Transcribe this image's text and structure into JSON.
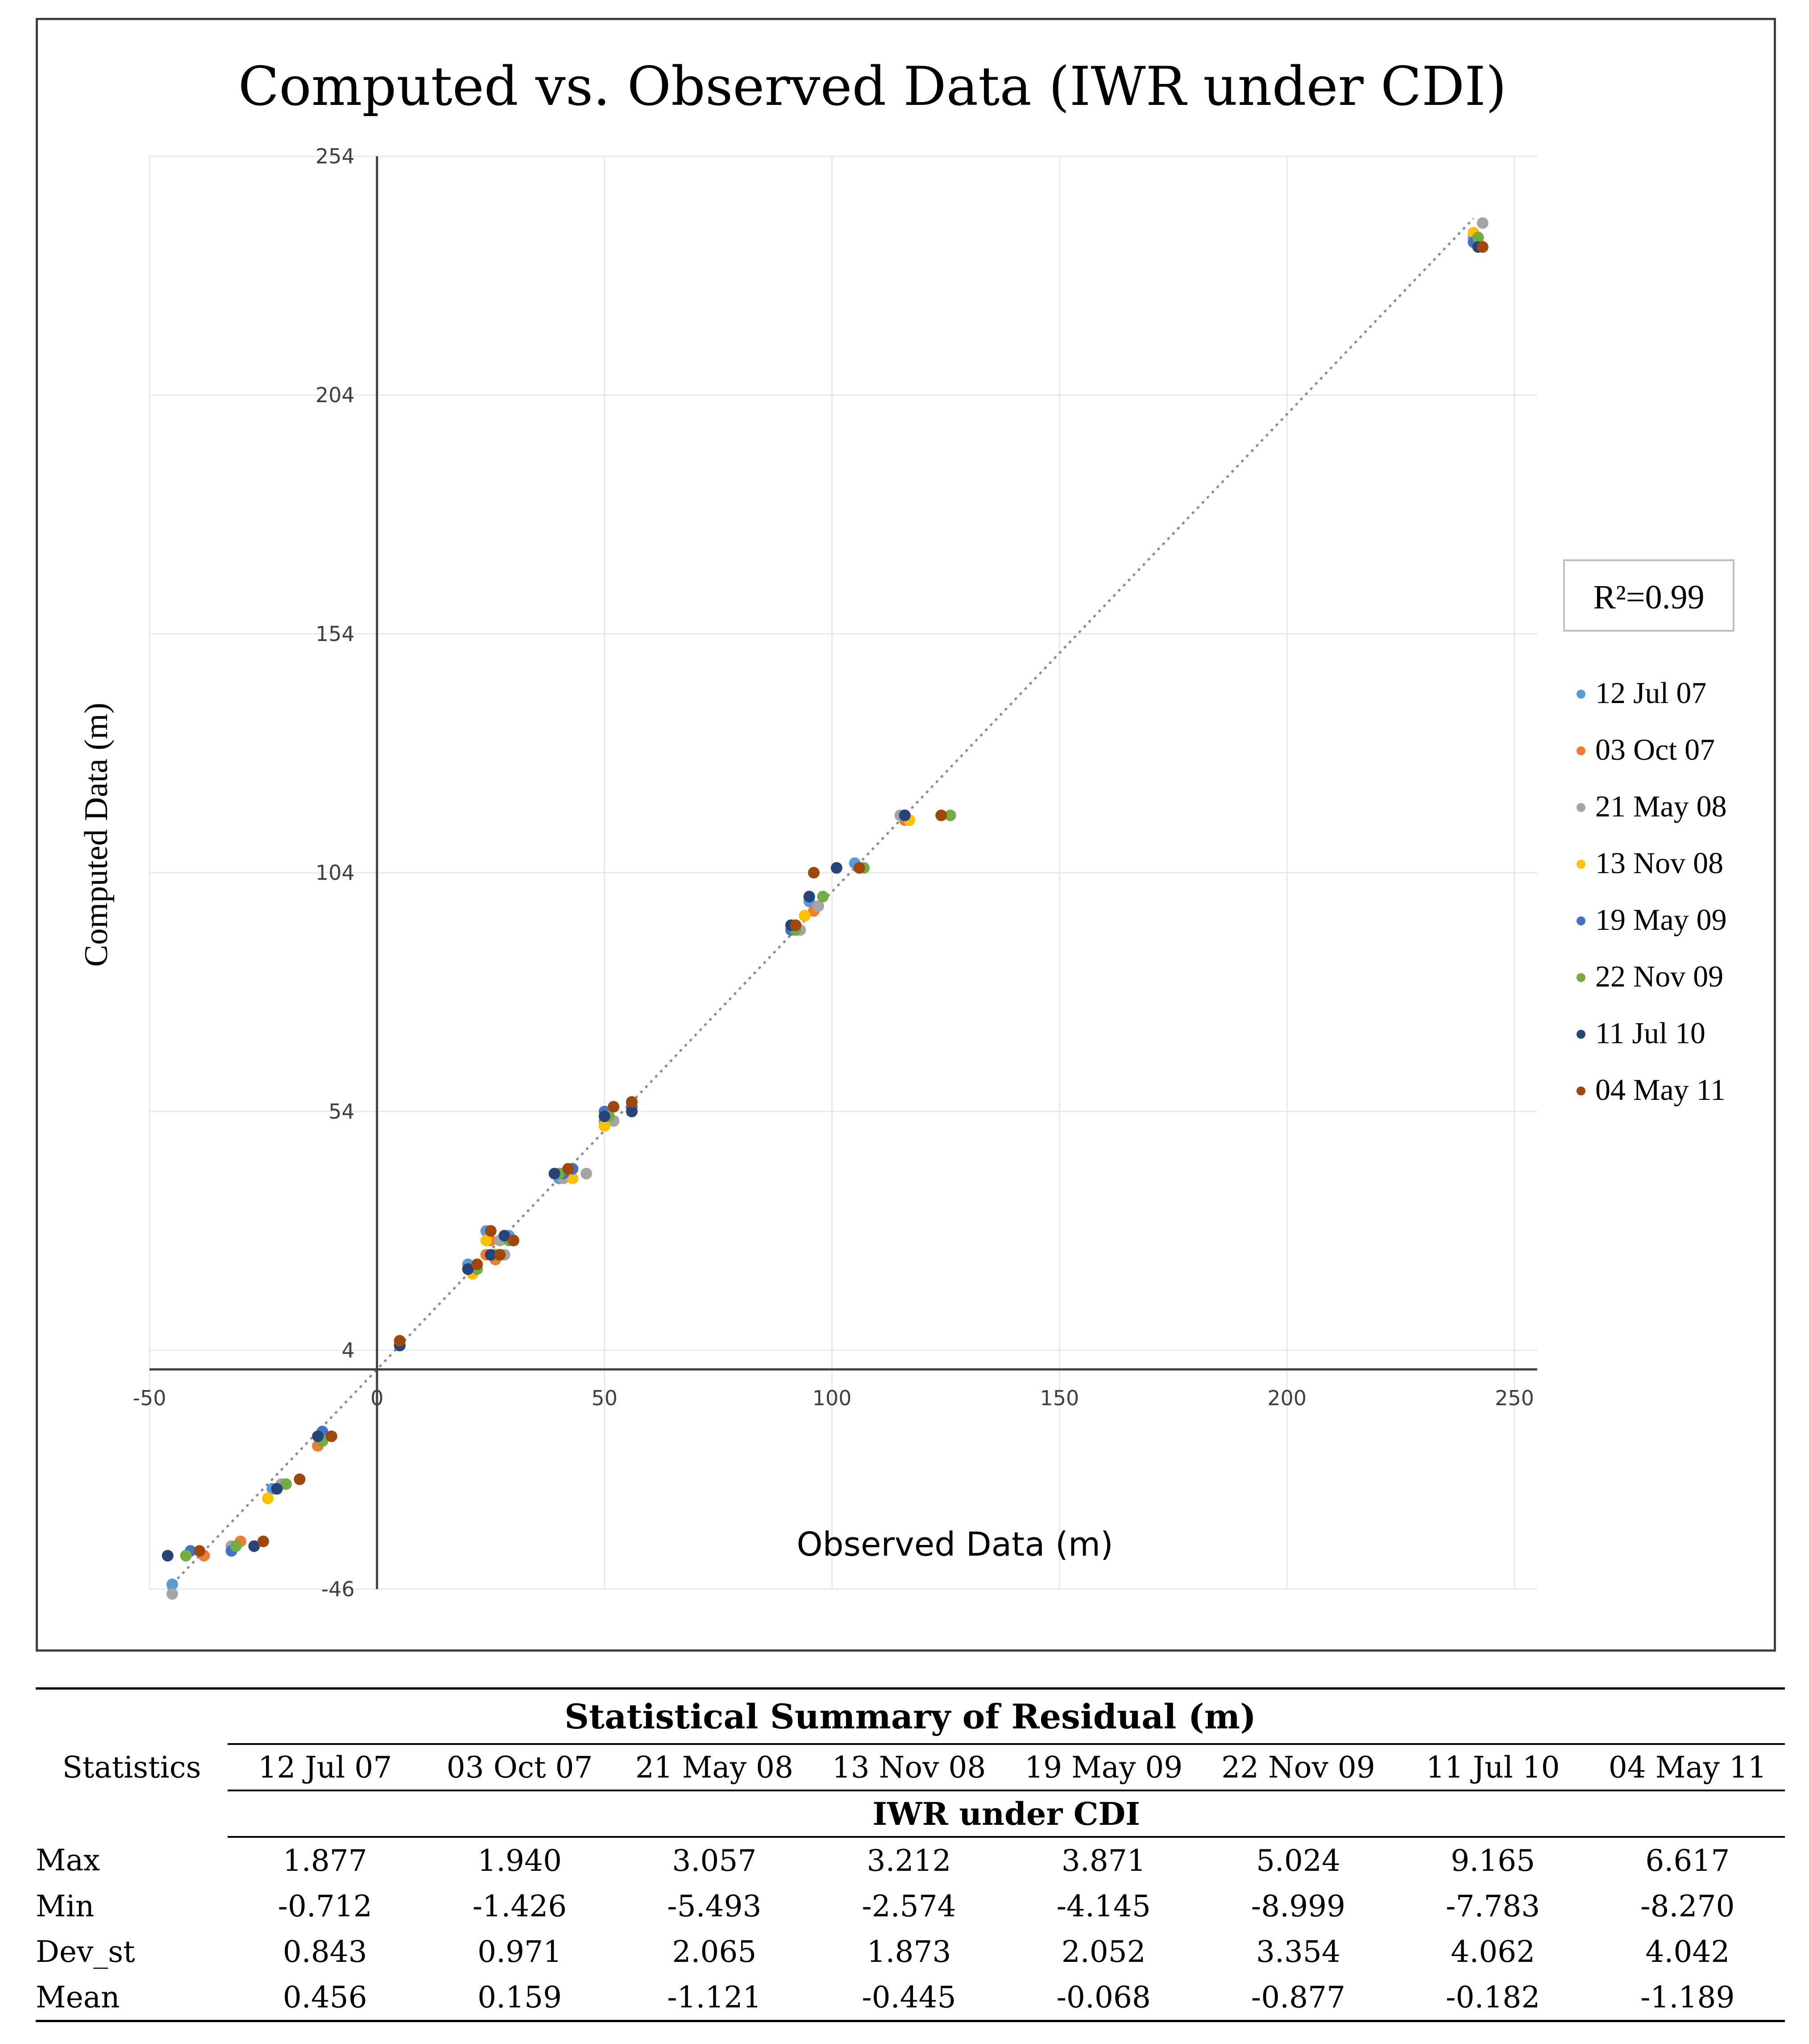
{
  "chart_data": {
    "type": "scatter",
    "title": "Computed vs. Observed Data (IWR under CDI)",
    "xlabel": "Observed Data (m)",
    "ylabel": "Computed Data (m)",
    "xlim": [
      -50,
      255
    ],
    "ylim": [
      -46,
      254
    ],
    "xticks": [
      -50,
      0,
      50,
      100,
      150,
      200,
      250
    ],
    "yticks": [
      -46,
      4,
      54,
      104,
      154,
      204,
      254
    ],
    "grid": true,
    "r2_label": "R²=0.99",
    "legend_position": "right",
    "trendline": {
      "style": "dotted",
      "from": [
        -46,
        -46
      ],
      "to": [
        241,
        241
      ]
    },
    "series": [
      {
        "name": "12 Jul 07",
        "color": "#5B9BD5",
        "points": [
          [
            -45,
            -45
          ],
          [
            -32,
            -37
          ],
          [
            -12,
            -15
          ],
          [
            -23,
            -25
          ],
          [
            5,
            5
          ],
          [
            20,
            22
          ],
          [
            24,
            29
          ],
          [
            29,
            28
          ],
          [
            40,
            40
          ],
          [
            42,
            41
          ],
          [
            50,
            52
          ],
          [
            56,
            55
          ],
          [
            92,
            93
          ],
          [
            95,
            98
          ],
          [
            105,
            106
          ],
          [
            116,
            116
          ],
          [
            241,
            237
          ]
        ]
      },
      {
        "name": "03 Oct 07",
        "color": "#ED7D31",
        "points": [
          [
            -38,
            -39
          ],
          [
            -30,
            -36
          ],
          [
            -13,
            -16
          ],
          [
            -22,
            -25
          ],
          [
            5,
            5
          ],
          [
            24,
            24
          ],
          [
            25,
            27
          ],
          [
            26,
            23
          ],
          [
            42,
            42
          ],
          [
            50,
            51
          ],
          [
            56,
            56
          ],
          [
            93,
            92
          ],
          [
            96,
            96
          ],
          [
            106,
            105
          ],
          [
            116,
            115
          ],
          [
            124,
            116
          ],
          [
            242,
            236
          ]
        ]
      },
      {
        "name": "21 May 08",
        "color": "#A5A5A5",
        "points": [
          [
            -45,
            -47
          ],
          [
            -32,
            -37
          ],
          [
            -12,
            -14
          ],
          [
            -21,
            -24
          ],
          [
            5,
            5
          ],
          [
            21,
            21
          ],
          [
            27,
            27
          ],
          [
            28,
            24
          ],
          [
            41,
            40
          ],
          [
            46,
            41
          ],
          [
            52,
            52
          ],
          [
            56,
            55
          ],
          [
            93,
            92
          ],
          [
            97,
            97
          ],
          [
            107,
            105
          ],
          [
            115,
            116
          ],
          [
            243,
            240
          ]
        ]
      },
      {
        "name": "13 Nov 08",
        "color": "#FFC000",
        "points": [
          [
            -24,
            -27
          ],
          [
            -12,
            -15
          ],
          [
            5,
            5
          ],
          [
            21,
            20
          ],
          [
            24,
            27
          ],
          [
            27,
            24
          ],
          [
            43,
            40
          ],
          [
            50,
            51
          ],
          [
            51,
            53
          ],
          [
            91,
            92
          ],
          [
            94,
            95
          ],
          [
            117,
            115
          ],
          [
            241,
            238
          ]
        ]
      },
      {
        "name": "19 May 09",
        "color": "#4472C4",
        "points": [
          [
            -41,
            -38
          ],
          [
            -32,
            -38
          ],
          [
            -12,
            -13
          ],
          [
            -22,
            -25
          ],
          [
            5,
            5
          ],
          [
            20,
            21
          ],
          [
            26,
            24
          ],
          [
            30,
            27
          ],
          [
            41,
            41
          ],
          [
            43,
            42
          ],
          [
            50,
            54
          ],
          [
            56,
            55
          ],
          [
            91,
            92
          ],
          [
            95,
            99
          ],
          [
            106,
            105
          ],
          [
            116,
            116
          ],
          [
            241,
            236
          ]
        ]
      },
      {
        "name": "22 Nov 09",
        "color": "#70AD47",
        "points": [
          [
            -42,
            -39
          ],
          [
            -31,
            -37
          ],
          [
            -20,
            -24
          ],
          [
            -12,
            -15
          ],
          [
            5,
            5
          ],
          [
            22,
            21
          ],
          [
            26,
            24
          ],
          [
            29,
            27
          ],
          [
            40,
            41
          ],
          [
            51,
            53
          ],
          [
            56,
            54
          ],
          [
            92,
            92
          ],
          [
            98,
            99
          ],
          [
            107,
            105
          ],
          [
            126,
            116
          ],
          [
            242,
            237
          ]
        ]
      },
      {
        "name": "11 Jul 10",
        "color": "#264478",
        "points": [
          [
            -46,
            -39
          ],
          [
            -27,
            -37
          ],
          [
            -13,
            -14
          ],
          [
            -22,
            -25
          ],
          [
            5,
            5
          ],
          [
            20,
            21
          ],
          [
            25,
            24
          ],
          [
            28,
            28
          ],
          [
            39,
            41
          ],
          [
            50,
            53
          ],
          [
            56,
            54
          ],
          [
            91,
            93
          ],
          [
            95,
            99
          ],
          [
            101,
            105
          ],
          [
            116,
            116
          ],
          [
            242,
            235
          ]
        ]
      },
      {
        "name": "04 May 11",
        "color": "#9E480E",
        "points": [
          [
            -39,
            -38
          ],
          [
            -25,
            -36
          ],
          [
            -10,
            -14
          ],
          [
            -17,
            -23
          ],
          [
            5,
            6
          ],
          [
            22,
            22
          ],
          [
            25,
            29
          ],
          [
            27,
            24
          ],
          [
            30,
            27
          ],
          [
            42,
            42
          ],
          [
            52,
            55
          ],
          [
            56,
            56
          ],
          [
            92,
            93
          ],
          [
            96,
            104
          ],
          [
            106,
            105
          ],
          [
            124,
            116
          ],
          [
            243,
            235
          ]
        ]
      }
    ]
  },
  "table": {
    "title": "Statistical Summary of Residual (m)",
    "stat_header": "Statistics",
    "columns": [
      "12 Jul 07",
      "03 Oct 07",
      "21 May 08",
      "13 Nov 08",
      "19 May 09",
      "22 Nov 09",
      "11 Jul 10",
      "04 May 11"
    ],
    "subtitle": "IWR under CDI",
    "rows": [
      {
        "label": "Max",
        "values": [
          "1.877",
          "1.940",
          "3.057",
          "3.212",
          "3.871",
          "5.024",
          "9.165",
          "6.617"
        ]
      },
      {
        "label": "Min",
        "values": [
          "-0.712",
          "-1.426",
          "-5.493",
          "-2.574",
          "-4.145",
          "-8.999",
          "-7.783",
          "-8.270"
        ]
      },
      {
        "label": "Dev_st",
        "values": [
          "0.843",
          "0.971",
          "2.065",
          "1.873",
          "2.052",
          "3.354",
          "4.062",
          "4.042"
        ]
      },
      {
        "label": "Mean",
        "values": [
          "0.456",
          "0.159",
          "-1.121",
          "-0.445",
          "-0.068",
          "-0.877",
          "-0.182",
          "-1.189"
        ]
      }
    ]
  }
}
